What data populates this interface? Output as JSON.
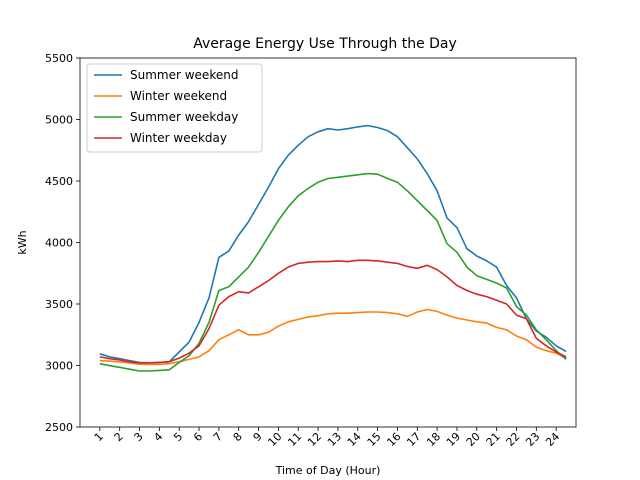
{
  "chart_data": {
    "type": "line",
    "title": "Average Energy Use Through the Day",
    "xlabel": "Time of Day (Hour)",
    "ylabel": "kWh",
    "xlim": [
      0,
      25
    ],
    "ylim": [
      2500,
      5500
    ],
    "yticks": [
      2500,
      3000,
      3500,
      4000,
      4500,
      5000,
      5500
    ],
    "xtick_labels": [
      "1",
      "2",
      "3",
      "4",
      "5",
      "6",
      "7",
      "8",
      "9",
      "10",
      "11",
      "12",
      "13",
      "14",
      "15",
      "16",
      "17",
      "18",
      "19",
      "20",
      "21",
      "22",
      "23",
      "24"
    ],
    "legend_position": "upper-left",
    "grid": false,
    "x": [
      1,
      1.5,
      2,
      2.5,
      3,
      3.5,
      4,
      4.5,
      5,
      5.5,
      6,
      6.5,
      7,
      7.5,
      8,
      8.5,
      9,
      9.5,
      10,
      10.5,
      11,
      11.5,
      12,
      12.5,
      13,
      13.5,
      14,
      14.5,
      15,
      15.5,
      16,
      16.5,
      17,
      17.5,
      18,
      18.5,
      19,
      19.5,
      20,
      20.5,
      21,
      21.5,
      22,
      22.5,
      23,
      23.5,
      24,
      24.5
    ],
    "series": [
      {
        "name": "Summer weekend",
        "color": "#1f77b4",
        "values": [
          3095,
          3070,
          3055,
          3040,
          3025,
          3022,
          3025,
          3030,
          3110,
          3190,
          3350,
          3550,
          3880,
          3930,
          4060,
          4170,
          4310,
          4450,
          4600,
          4710,
          4790,
          4860,
          4900,
          4925,
          4915,
          4925,
          4940,
          4950,
          4935,
          4910,
          4860,
          4770,
          4680,
          4560,
          4420,
          4200,
          4120,
          3950,
          3890,
          3850,
          3800,
          3650,
          3550,
          3380,
          3280,
          3230,
          3160,
          3115
        ]
      },
      {
        "name": "Winter weekend",
        "color": "#ff7f0e",
        "values": [
          3040,
          3035,
          3030,
          3020,
          3010,
          3008,
          3010,
          3015,
          3030,
          3050,
          3070,
          3120,
          3210,
          3250,
          3290,
          3250,
          3250,
          3270,
          3320,
          3355,
          3375,
          3395,
          3405,
          3420,
          3425,
          3425,
          3430,
          3435,
          3435,
          3430,
          3420,
          3400,
          3435,
          3455,
          3440,
          3410,
          3385,
          3370,
          3355,
          3345,
          3310,
          3290,
          3240,
          3210,
          3150,
          3120,
          3100,
          3060
        ]
      },
      {
        "name": "Summer weekday",
        "color": "#2ca02c",
        "values": [
          3015,
          2998,
          2985,
          2970,
          2955,
          2955,
          2960,
          2965,
          3025,
          3080,
          3180,
          3350,
          3610,
          3640,
          3720,
          3800,
          3920,
          4050,
          4180,
          4290,
          4380,
          4440,
          4490,
          4520,
          4530,
          4540,
          4550,
          4560,
          4555,
          4520,
          4490,
          4420,
          4340,
          4260,
          4180,
          3990,
          3920,
          3800,
          3730,
          3700,
          3670,
          3630,
          3480,
          3410,
          3290,
          3210,
          3120,
          3050
        ]
      },
      {
        "name": "Winter weekday",
        "color": "#d62728",
        "values": [
          3070,
          3055,
          3045,
          3030,
          3020,
          3020,
          3025,
          3030,
          3060,
          3100,
          3160,
          3300,
          3490,
          3560,
          3600,
          3590,
          3640,
          3690,
          3750,
          3800,
          3830,
          3840,
          3845,
          3845,
          3850,
          3845,
          3855,
          3855,
          3850,
          3840,
          3830,
          3805,
          3790,
          3815,
          3780,
          3720,
          3650,
          3610,
          3580,
          3560,
          3530,
          3500,
          3410,
          3380,
          3220,
          3160,
          3110,
          3070
        ]
      }
    ]
  }
}
